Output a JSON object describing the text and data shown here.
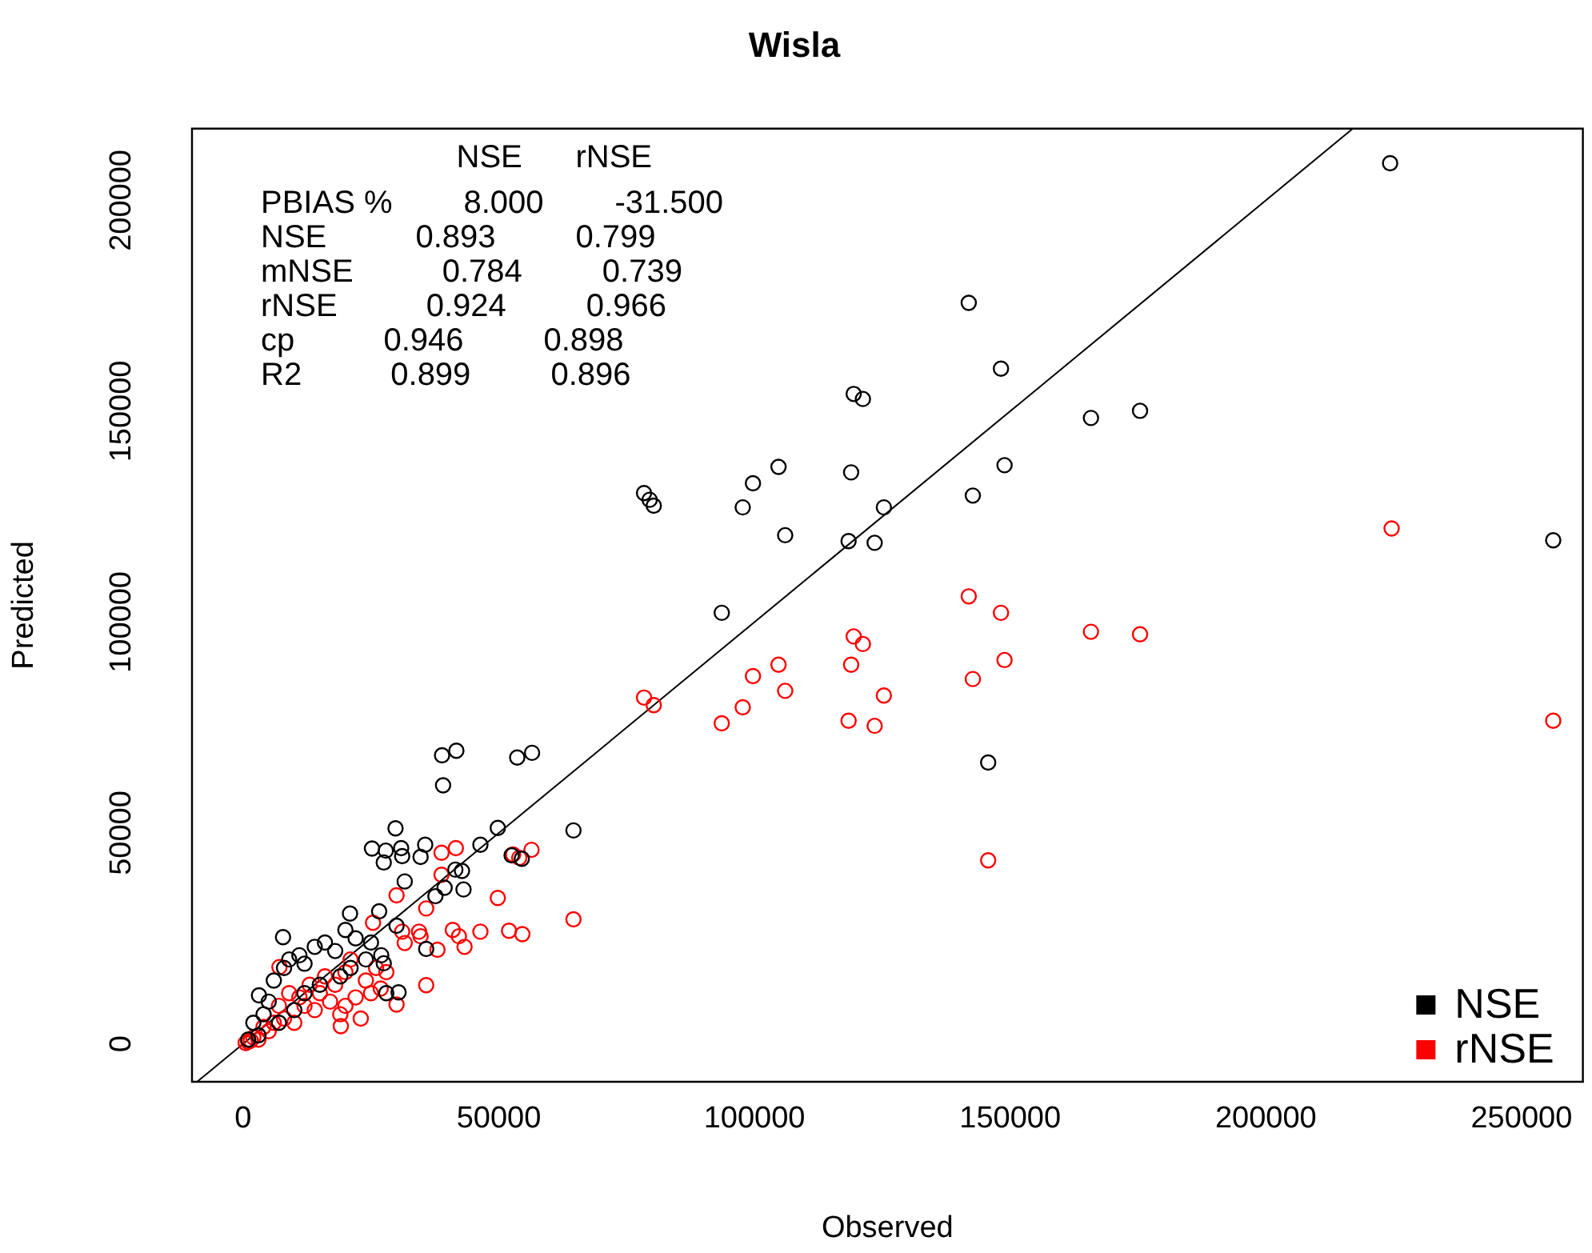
{
  "chart_data": {
    "type": "scatter",
    "title": "Wisla",
    "xlabel": "Observed",
    "ylabel": "Predicted",
    "xlim": [
      -10000,
      262000
    ],
    "ylim": [
      -9000,
      217000
    ],
    "xticks": [
      0,
      50000,
      100000,
      150000,
      200000,
      250000
    ],
    "yticks": [
      0,
      50000,
      100000,
      150000,
      200000
    ],
    "grid": false,
    "legend": "bottom right",
    "marker": "circle",
    "annotations": [
      "                      NSE      rNSE",
      "PBIAS %        8.000        -31.500",
      "NSE          0.893         0.799",
      "mNSE          0.784         0.739",
      "rNSE          0.924         0.966",
      "cp          0.946         0.898",
      "R2          0.899         0.896"
    ],
    "series": [
      {
        "name": "NSE",
        "color": "#000000",
        "x": [
          224300,
          256200,
          141900,
          148200,
          119400,
          121200,
          165800,
          175400,
          104700,
          99700,
          97700,
          78400,
          79500,
          80300,
          118900,
          148900,
          142700,
          125300,
          106000,
          118400,
          123500,
          93600,
          145700,
          38900,
          41700,
          53600,
          56500,
          39100,
          64600,
          29800,
          49800,
          46400,
          25200,
          27900,
          30900,
          35600,
          27500,
          31100,
          34700,
          52500,
          54500,
          41500,
          42800,
          31600,
          39400,
          43100,
          37600,
          26600,
          20900,
          7800,
          35800,
          27500,
          3100,
          30400,
          5000,
          6000,
          8000,
          9000,
          11000,
          12000,
          14000,
          16000,
          18000,
          20000,
          22000,
          25000,
          21000,
          24000,
          27000,
          30000,
          28000,
          2000,
          3000,
          1000,
          4000,
          10000,
          15000,
          19000,
          12000,
          7000
        ],
        "values": [
          208800,
          119400,
          175700,
          160100,
          154100,
          152900,
          148400,
          150100,
          136800,
          132900,
          127200,
          130600,
          129000,
          127600,
          135500,
          137200,
          130000,
          127200,
          120600,
          119200,
          118800,
          102200,
          66700,
          68400,
          69500,
          67900,
          69000,
          61300,
          50600,
          51100,
          51200,
          47200,
          46300,
          45800,
          46400,
          47200,
          43000,
          44500,
          44300,
          44700,
          43900,
          41300,
          41000,
          38500,
          37000,
          36600,
          35000,
          31400,
          30900,
          25300,
          22500,
          19100,
          11500,
          12200,
          10000,
          15000,
          18000,
          20000,
          21000,
          19000,
          23000,
          24000,
          22000,
          27000,
          25000,
          24000,
          18000,
          20000,
          21000,
          28000,
          12000,
          5000,
          2000,
          1000,
          7000,
          8000,
          14000,
          16000,
          12000,
          5000
        ]
      },
      {
        "name": "rNSE",
        "color": "#ff0000",
        "x": [
          224600,
          256200,
          141900,
          148200,
          165800,
          175400,
          119400,
          121200,
          118900,
          148900,
          142700,
          104700,
          99700,
          106000,
          125300,
          97700,
          93600,
          118400,
          123500,
          78400,
          80300,
          145700,
          38800,
          41600,
          52800,
          54000,
          56400,
          38800,
          30000,
          35800,
          49800,
          64600,
          25400,
          31100,
          34400,
          34700,
          41000,
          42200,
          46400,
          52000,
          54600,
          31600,
          38000,
          43300,
          35800,
          26900,
          30000,
          19100,
          7100,
          1000,
          2000,
          3000,
          5000,
          6000,
          8000,
          10000,
          12000,
          14000,
          15000,
          17000,
          18000,
          20000,
          20000,
          22000,
          16000,
          13000,
          11000,
          9000,
          7000,
          4000,
          24000,
          25000,
          21000,
          19000,
          23000,
          26000,
          28000,
          500,
          1500
        ],
        "values": [
          122200,
          76600,
          106100,
          102200,
          97700,
          97100,
          96600,
          94800,
          89900,
          91000,
          86500,
          89900,
          87200,
          83700,
          82600,
          79800,
          76000,
          76600,
          75400,
          82100,
          80300,
          43500,
          45300,
          46400,
          44900,
          44100,
          46000,
          40100,
          35200,
          32100,
          34600,
          29500,
          28700,
          26600,
          26600,
          25500,
          27000,
          25500,
          26600,
          26800,
          26000,
          23900,
          22300,
          23000,
          13900,
          13100,
          9300,
          4200,
          18200,
          500,
          1500,
          1000,
          3000,
          5000,
          6000,
          5000,
          9000,
          8000,
          12000,
          10000,
          14000,
          17000,
          9000,
          11000,
          16000,
          14000,
          11000,
          12000,
          9000,
          4000,
          15000,
          12000,
          20000,
          7000,
          6000,
          18000,
          17000,
          200,
          800
        ]
      },
      {
        "type": "line",
        "color": "#000000",
        "marker": "none",
        "x": [
          -9000,
          217000
        ],
        "values": [
          -9000,
          217000
        ]
      }
    ]
  }
}
